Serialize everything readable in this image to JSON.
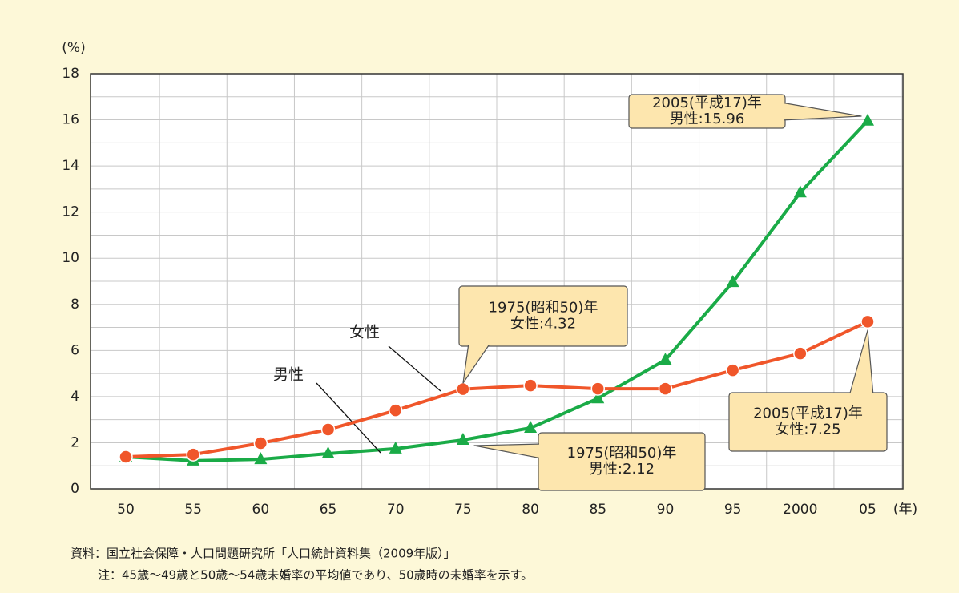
{
  "chart_data": {
    "type": "line",
    "ylabel": "(%)",
    "xlabel": "(年)",
    "categories": [
      "50",
      "55",
      "60",
      "65",
      "70",
      "75",
      "80",
      "85",
      "90",
      "95",
      "2000",
      "05"
    ],
    "series": [
      {
        "name": "男性",
        "color": "#1aab47",
        "values": [
          1.39,
          1.22,
          1.28,
          1.53,
          1.74,
          2.12,
          2.64,
          3.92,
          5.59,
          8.96,
          12.85,
          15.96
        ]
      },
      {
        "name": "女性",
        "color": "#f0562a",
        "values": [
          1.39,
          1.49,
          1.98,
          2.57,
          3.4,
          4.32,
          4.48,
          4.34,
          4.34,
          5.14,
          5.87,
          7.25
        ]
      }
    ],
    "ylim": [
      0,
      18
    ],
    "yticks": [
      0,
      2,
      4,
      6,
      8,
      10,
      12,
      14,
      16,
      18
    ],
    "grid": true,
    "annotations": [
      {
        "lines": [
          "2005(平成17)年",
          "男性:15.96"
        ]
      },
      {
        "lines": [
          "1975(昭和50)年",
          "女性:4.32"
        ]
      },
      {
        "lines": [
          "2005(平成17)年",
          "女性:7.25"
        ]
      },
      {
        "lines": [
          "1975(昭和50)年",
          "男性:2.12"
        ]
      }
    ],
    "notes": [
      "資料：国立社会保障・人口問題研究所「人口統計資料集（2009年版）」",
      "注：45歳～49歳と50歳～54歳未婚率の平均値であり、50歳時の未婚率を示す。"
    ]
  }
}
